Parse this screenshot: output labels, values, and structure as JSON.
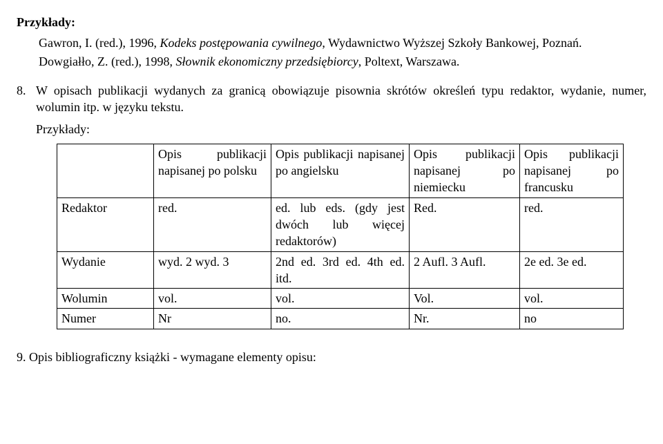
{
  "heading_examples": "Przykłady:",
  "ex1_pre": "Gawron, I. (red.), 1996, ",
  "ex1_title": "Kodeks postępowania cywilnego",
  "ex1_post": ", Wydawnictwo Wyższej Szkoły Bankowej, Poznań.",
  "ex2_pre": "Dowgiałło, Z. (red.), 1998, ",
  "ex2_title": "Słownik ekonomiczny przedsiębiorcy",
  "ex2_post": ", Poltext, Warszawa.",
  "item8_num": "8.",
  "item8_text": "W opisach publikacji wydanych za granicą obowiązuje pisownia skrótów określeń typu redaktor, wydanie, numer, wolumin itp. w języku tekstu.",
  "sub_examples": "Przykłady:",
  "table": {
    "headers": [
      "",
      "Opis publikacji napisanej po polsku",
      "Opis publikacji napisanej po angielsku",
      "Opis publikacji napisanej po niemiecku",
      "Opis publikacji napisanej po francusku"
    ],
    "rows": [
      {
        "label": "Redaktor",
        "pl": "red.",
        "en": "ed. lub eds. (gdy jest dwóch lub więcej redaktorów)",
        "de": "Red.",
        "fr": "red."
      },
      {
        "label": "Wydanie",
        "pl": "wyd. 2 wyd. 3",
        "en": "2nd ed. 3rd ed. 4th ed. itd.",
        "de": "2 Aufl. 3 Aufl.",
        "fr": "2e ed. 3e ed."
      },
      {
        "label": "Wolumin",
        "pl": "vol.",
        "en": "vol.",
        "de": "Vol.",
        "fr": "vol."
      },
      {
        "label": "Numer",
        "pl": "Nr",
        "en": "no.",
        "de": "Nr.",
        "fr": "no"
      }
    ]
  },
  "item9": "9. Opis bibliograficzny książki - wymagane elementy opisu:"
}
